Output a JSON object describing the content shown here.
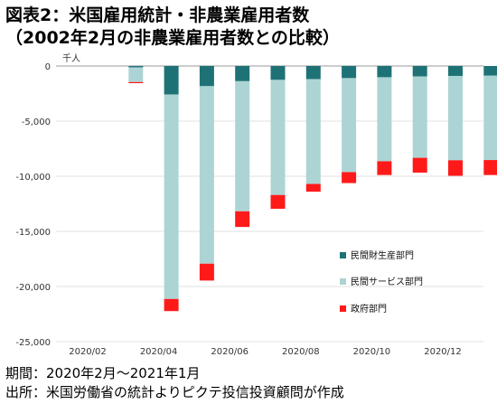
{
  "title_line1": "図表2：米国雇用統計・非農業雇用者数",
  "title_line2": "（2002年2月の非農業雇用者数との比較）",
  "footnote_period": "期間：2020年2月～2021年1月",
  "footnote_source": "出所：米国労働省の統計よりピクテ投信投資顧問が作成",
  "chart_data": {
    "type": "bar",
    "stacked": true,
    "unit": "千人",
    "ylim": [
      -25000,
      0
    ],
    "yticks": [
      0,
      -5000,
      -10000,
      -15000,
      -20000,
      -25000
    ],
    "ytick_labels": [
      "0",
      "-5,000",
      "-10,000",
      "-15,000",
      "-20,000",
      "-25,000"
    ],
    "categories": [
      "2020-02",
      "2020-03",
      "2020-04",
      "2020-05",
      "2020-06",
      "2020-07",
      "2020-08",
      "2020-09",
      "2020-10",
      "2020-11",
      "2020-12",
      "2021-01"
    ],
    "x_tick_labels": [
      "2020/02",
      "2020/04",
      "2020/06",
      "2020/08",
      "2020/10",
      "2020/12"
    ],
    "x_tick_index": [
      0,
      2,
      4,
      6,
      8,
      10
    ],
    "series": [
      {
        "name": "民間財生産部門",
        "color": "#1e7276",
        "values": [
          0,
          -120,
          -2580,
          -1830,
          -1380,
          -1260,
          -1200,
          -1100,
          -1020,
          -950,
          -900,
          -880
        ]
      },
      {
        "name": "民間サービス部門",
        "color": "#add4d4",
        "values": [
          0,
          -1340,
          -18550,
          -16100,
          -11800,
          -10440,
          -9500,
          -8530,
          -7620,
          -7380,
          -7650,
          -7650
        ]
      },
      {
        "name": "政府部門",
        "color": "#ff1a1a",
        "values": [
          0,
          -100,
          -1100,
          -1530,
          -1420,
          -1250,
          -700,
          -990,
          -1250,
          -1340,
          -1410,
          -1360
        ]
      }
    ],
    "legend_position": "bottom-right"
  }
}
